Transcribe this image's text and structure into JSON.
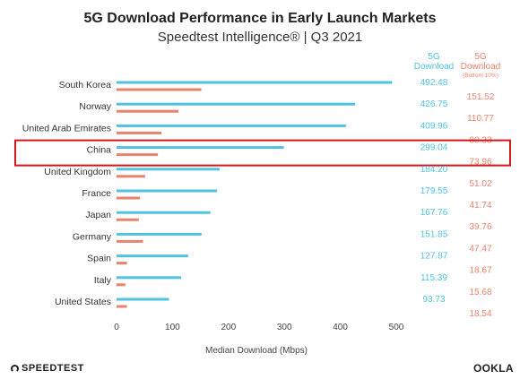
{
  "chart_data": {
    "type": "bar",
    "orientation": "horizontal",
    "title": "5G Download Performance in Early Launch Markets",
    "subtitle": "Speedtest Intelligence® | Q3 2021",
    "xlabel": "Median Download (Mbps)",
    "ylabel": "",
    "xlim": [
      0,
      500
    ],
    "xticks": [
      0,
      100,
      200,
      300,
      400,
      500
    ],
    "categories": [
      "South Korea",
      "Norway",
      "United Arab Emirates",
      "China",
      "United Kingdom",
      "France",
      "Japan",
      "Germany",
      "Spain",
      "Italy",
      "United States"
    ],
    "series": [
      {
        "name": "5G Download",
        "color": "#4fc3e0",
        "values": [
          492.48,
          426.75,
          409.96,
          299.04,
          184.2,
          179.55,
          167.76,
          151.85,
          127.87,
          115.39,
          93.73
        ],
        "labels": [
          "492.48",
          "426.75",
          "409.96",
          "299.04",
          "184.20",
          "179.55",
          "167.76",
          "151.85",
          "127.87",
          "115.39",
          "93.73"
        ]
      },
      {
        "name": "5G Download (Bottom 10%)",
        "color": "#e8836b",
        "values": [
          151.52,
          110.77,
          80.33,
          73.96,
          51.02,
          41.74,
          39.76,
          47.47,
          18.67,
          15.68,
          18.54
        ],
        "labels": [
          "151.52",
          "110.77",
          "80.33",
          "73.96",
          "51.02",
          "41.74",
          "39.76",
          "47.47",
          "18.67",
          "15.68",
          "18.54"
        ]
      }
    ],
    "legend": {
      "cyan_line1": "5G",
      "cyan_line2": "Download",
      "orange_line1": "5G",
      "orange_line2": "Download",
      "orange_line3": "(Bottom 10%)",
      "placement": "top-right"
    },
    "highlight": {
      "category": "China",
      "color": "#d0181c"
    },
    "grid": false
  },
  "footer": {
    "left_logo": "SPEEDTEST",
    "right_logo": "OOKLA"
  }
}
